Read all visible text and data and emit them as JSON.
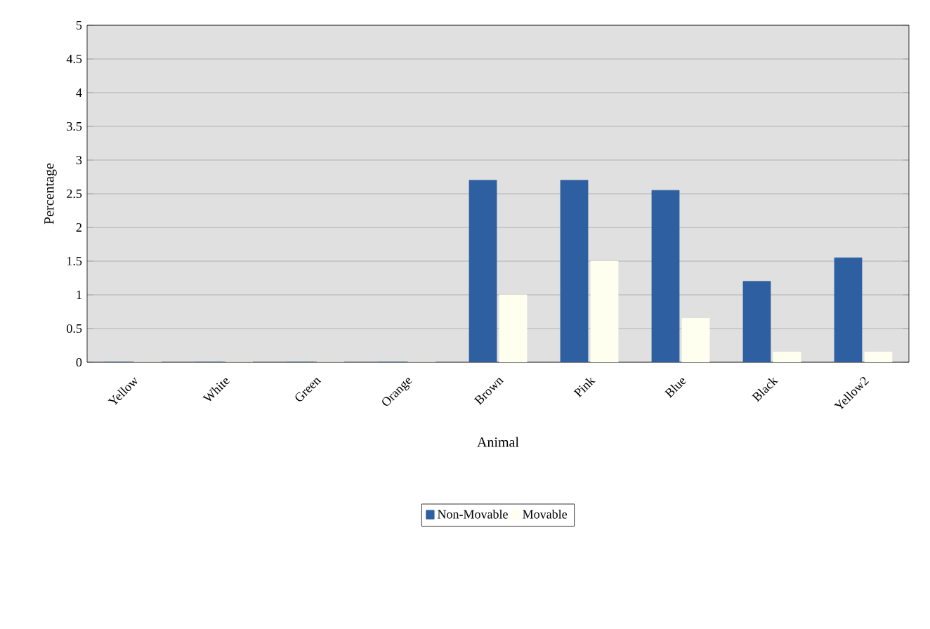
{
  "chart_data": {
    "type": "bar",
    "xlabel": "Animal",
    "ylabel": "Percentage",
    "categories": [
      "Yellow",
      "White",
      "Green",
      "Orange",
      "Brown",
      "Pink",
      "Blue",
      "Black",
      "Yellow2"
    ],
    "series": [
      {
        "name": "Non-Movable",
        "color": "#2e5fa0",
        "values": [
          0,
          0,
          0,
          0,
          2.7,
          2.7,
          2.55,
          1.2,
          1.55
        ]
      },
      {
        "name": "Movable",
        "color": "#fffff0",
        "values": [
          0,
          0,
          0,
          0,
          1.0,
          1.5,
          0.65,
          0.15,
          0.15
        ]
      }
    ],
    "ylim": [
      0,
      5
    ],
    "yticks": [
      0,
      0.5,
      1,
      1.5,
      2,
      2.5,
      3,
      3.5,
      4,
      4.5,
      5
    ],
    "grid": "y",
    "legend": "bottom"
  }
}
